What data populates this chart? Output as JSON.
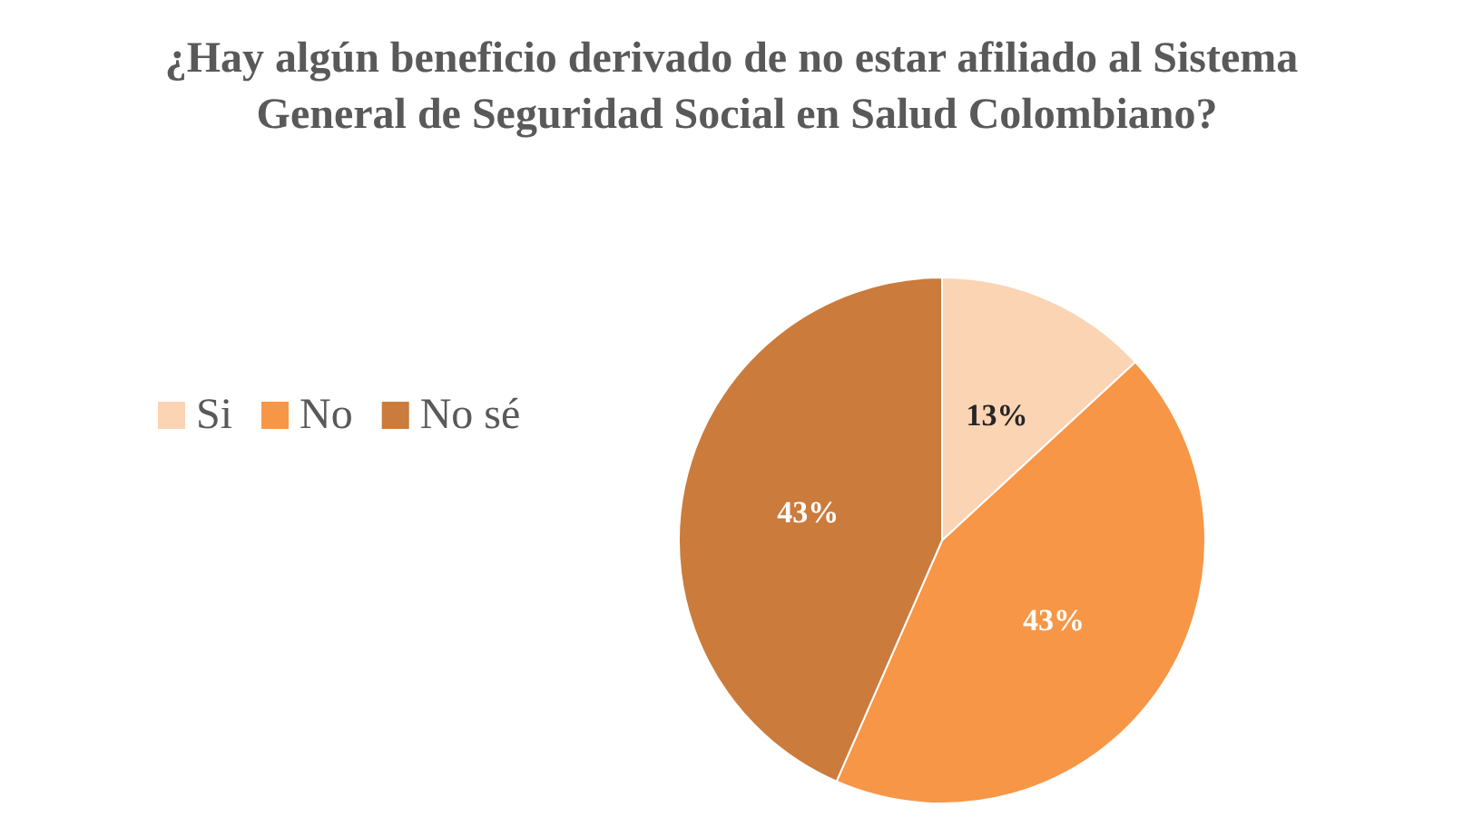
{
  "chart_data": {
    "type": "pie",
    "title": "¿Hay algún beneficio derivado de no estar afiliado al Sistema General de Seguridad Social en Salud Colombiano?",
    "categories": [
      "Si",
      "No",
      "No sé"
    ],
    "values": [
      13,
      43,
      43
    ],
    "colors": [
      "#fbd4b4",
      "#f79646",
      "#cb7b3b"
    ],
    "value_labels": [
      "13%",
      "43%",
      "43%"
    ],
    "legend": "left"
  }
}
